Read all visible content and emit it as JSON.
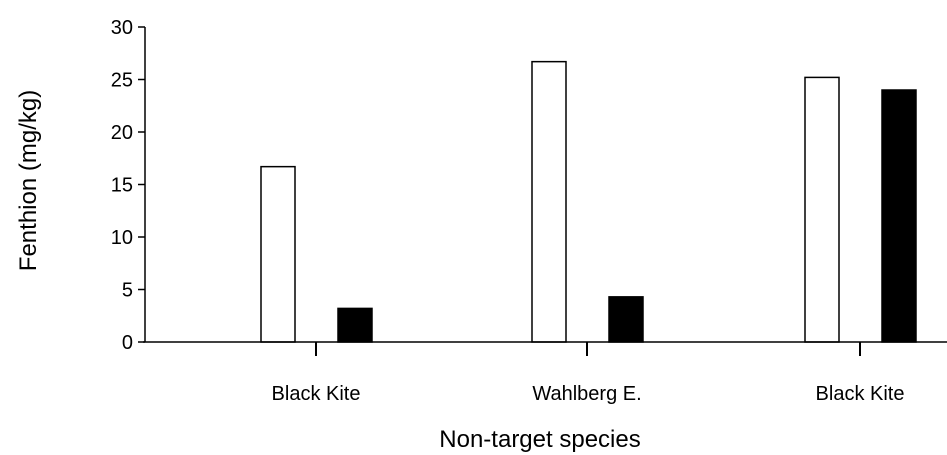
{
  "chart_data": {
    "type": "bar",
    "categories": [
      "Black Kite",
      "Wahlberg E.",
      "Black Kite"
    ],
    "series": [
      {
        "values": [
          16.7,
          26.7,
          25.2
        ],
        "color": "#ffffff"
      },
      {
        "values": [
          3.2,
          4.3,
          24.0
        ],
        "color": "#000000"
      }
    ],
    "xlabel": "Non-target species",
    "ylabel": "Fenthion (mg/kg)",
    "ylim": [
      0,
      30
    ],
    "yticks": [
      "0",
      "5",
      "10",
      "15",
      "20",
      "25",
      "30"
    ],
    "grid": false,
    "legend": "none"
  }
}
